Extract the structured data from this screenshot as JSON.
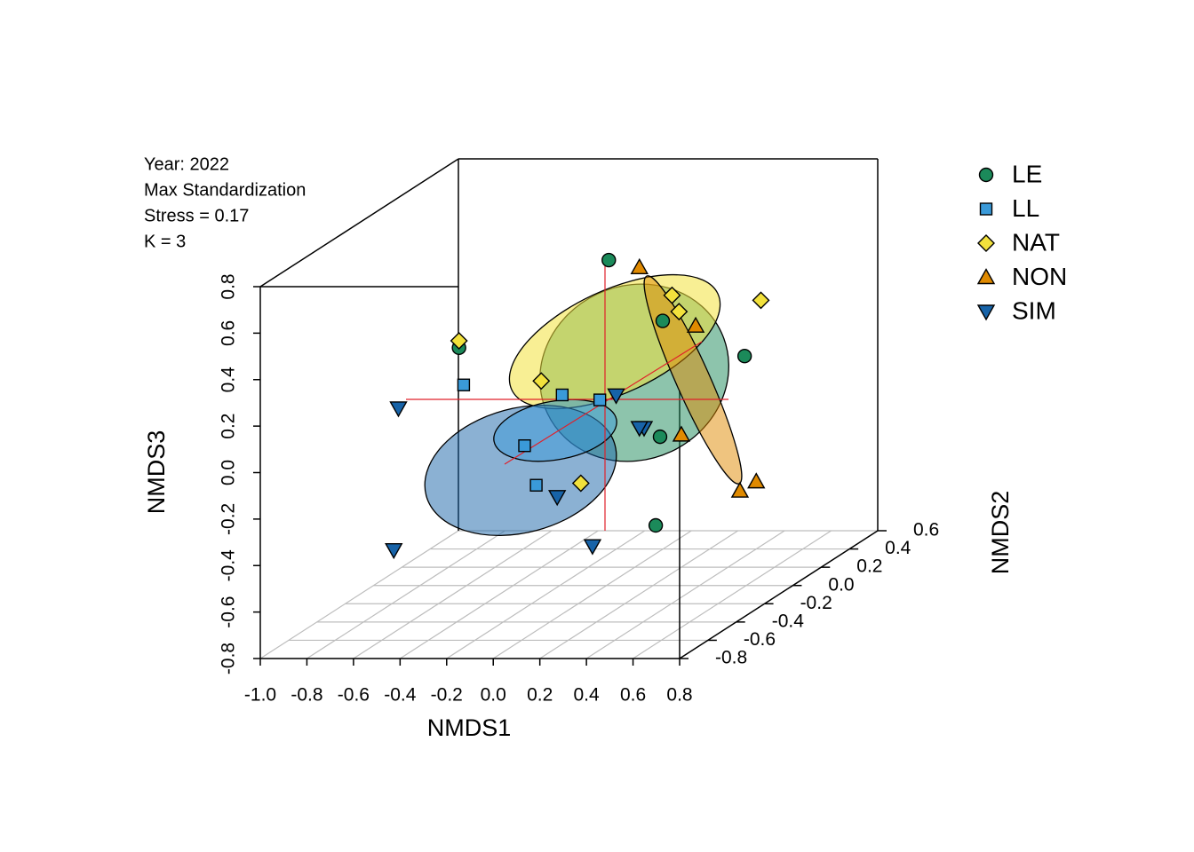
{
  "chart_data": {
    "type": "scatter3d",
    "annotations": [
      "Year: 2022",
      "Max Standardization",
      "Stress = 0.17",
      "K = 3"
    ],
    "xlabel": "NMDS1",
    "ylabel": "NMDS2",
    "zlabel": "NMDS3",
    "xlim": [
      -1.0,
      0.8
    ],
    "xticks": [
      {
        "value": -1.0,
        "label": "-1.0"
      },
      -0.8,
      -0.6,
      -0.4,
      -0.2,
      {
        "value": 0,
        "label": "0.0"
      },
      0.2,
      0.4,
      0.6,
      0.8
    ],
    "ylim": [
      -0.8,
      0.6
    ],
    "yticks": [
      -0.8,
      -0.6,
      -0.4,
      -0.2,
      {
        "value": 0,
        "label": "0.0"
      },
      0.2,
      0.4,
      0.6
    ],
    "zlim": [
      -0.8,
      0.8
    ],
    "zticks": [
      -0.8,
      -0.6,
      -0.4,
      -0.2,
      {
        "value": 0,
        "label": "0.0"
      },
      0.2,
      0.4,
      0.6,
      0.8
    ],
    "grid": true,
    "legend": "top-right",
    "series": [
      {
        "name": "LE",
        "color": "#1b8a5a",
        "marker": "circle",
        "x": [
          0.01,
          0.12,
          -0.39,
          0.35,
          0.23,
          0.09
        ],
        "y": [
          0,
          0.2,
          -0.4,
          0.4,
          0,
          0.2
        ],
        "z": [
          0.6,
          0.26,
          0.38,
          0.03,
          -0.16,
          -0.62
        ]
      },
      {
        "name": "LL",
        "color": "#3a9ad9",
        "marker": "square",
        "x": [
          -0.37,
          -0.19,
          -0.15,
          -0.23,
          -0.18
        ],
        "y": [
          -0.4,
          0,
          0.2,
          -0.2,
          -0.2
        ],
        "z": [
          0.22,
          0.02,
          -0.08,
          -0.12,
          -0.29
        ]
      },
      {
        "name": "NAT",
        "color": "#f2e13c",
        "marker": "diamond",
        "x": [
          -0.39,
          0.16,
          0.19,
          0.42,
          -0.28,
          -0.11
        ],
        "y": [
          -0.4,
          0.2,
          0.2,
          0.4,
          0,
          0
        ],
        "z": [
          0.41,
          0.37,
          0.3,
          0.27,
          0.08,
          -0.36
        ]
      },
      {
        "name": "NON",
        "color": "#e08a00",
        "marker": "triangle",
        "x": [
          0.02,
          0.14,
          0.2,
          0.33,
          0.4
        ],
        "y": [
          0.2,
          0.4,
          0.2,
          0.4,
          0.4
        ],
        "z": [
          0.49,
          0.16,
          -0.23,
          -0.55,
          -0.51
        ]
      },
      {
        "name": "SIM",
        "color": "#1763a8",
        "marker": "down-triangle",
        "x": [
          -0.65,
          -0.08,
          0.04,
          0.02,
          -0.09,
          -0.67,
          -0.06
        ],
        "y": [
          -0.4,
          0.2,
          0.2,
          0.2,
          -0.2,
          -0.4,
          0
        ],
        "z": [
          0.12,
          -0.06,
          -0.2,
          -0.2,
          -0.34,
          -0.49,
          -0.63
        ]
      }
    ]
  }
}
